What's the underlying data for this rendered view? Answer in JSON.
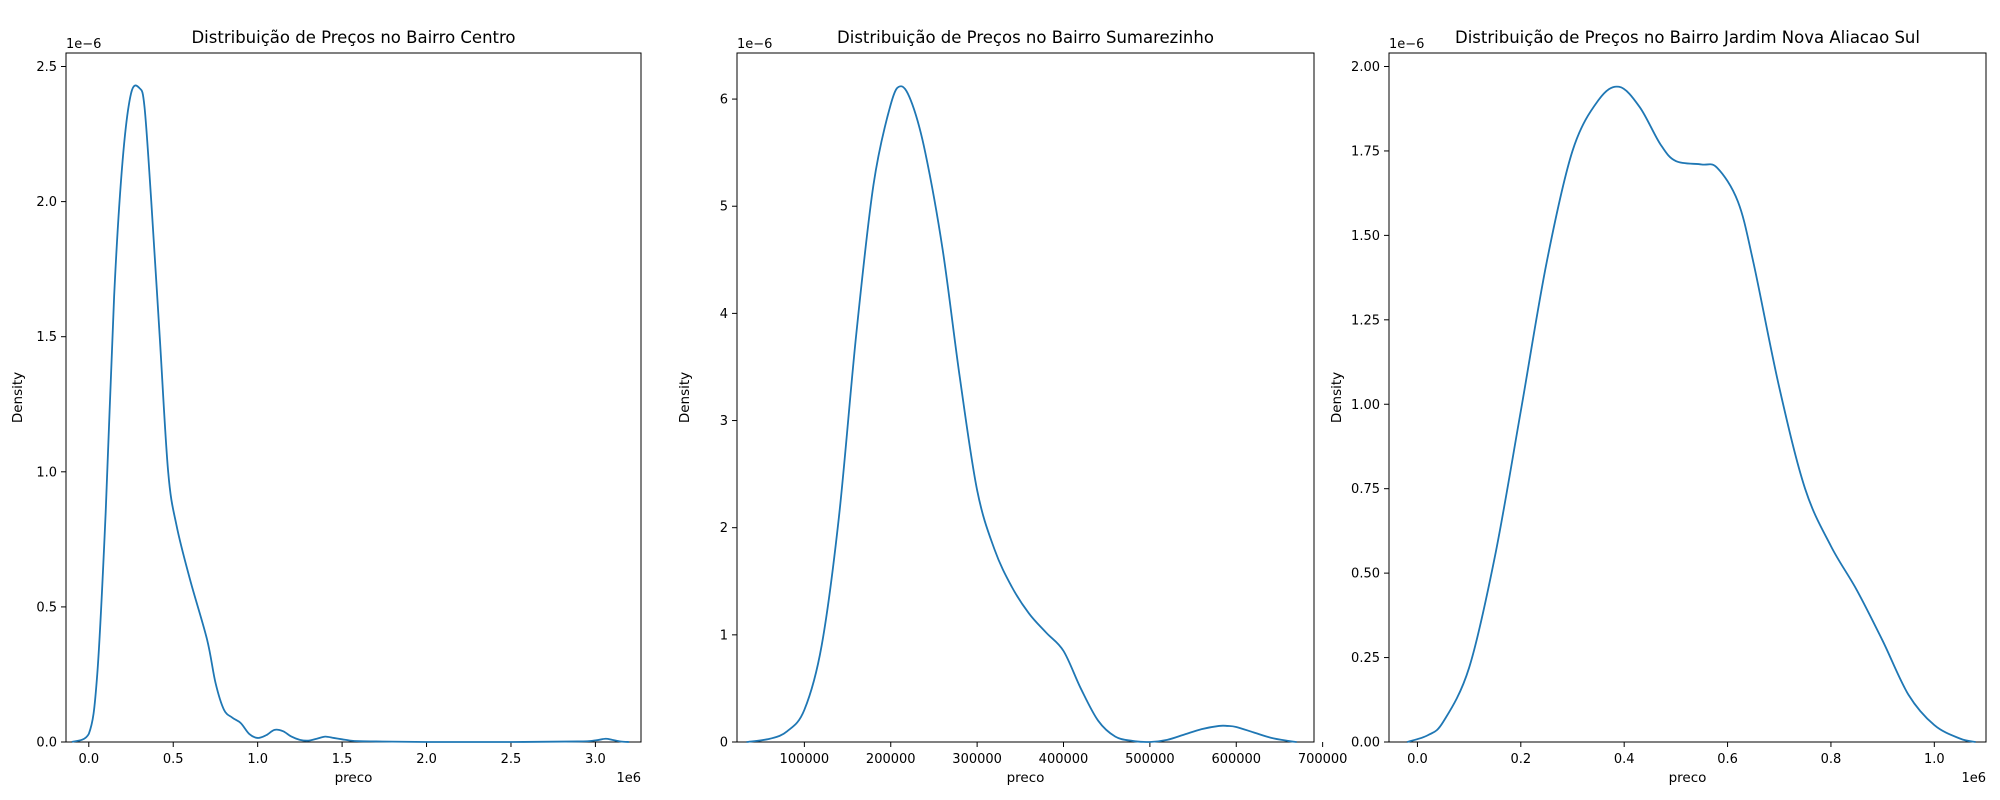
{
  "figure": {
    "background": "#ffffff",
    "line_color": "#1f77b4"
  },
  "chart_data": [
    {
      "type": "line",
      "title": "Distribuição de Preços no Bairro Centro",
      "xlabel": "preco",
      "ylabel": "Density",
      "x_offset_label": "1e6",
      "y_offset_label": "1e−6",
      "xlim": [
        -0.135,
        3.27
      ],
      "ylim": [
        0,
        2.55
      ],
      "xticks": [
        0.0,
        0.5,
        1.0,
        1.5,
        2.0,
        2.5,
        3.0
      ],
      "xtick_labels": [
        "0.0",
        "0.5",
        "1.0",
        "1.5",
        "2.0",
        "2.5",
        "3.0"
      ],
      "yticks": [
        0.0,
        0.5,
        1.0,
        1.5,
        2.0,
        2.5
      ],
      "ytick_labels": [
        "0.0",
        "0.5",
        "1.0",
        "1.5",
        "2.0",
        "2.5"
      ],
      "grid": false,
      "series": [
        {
          "x": [
            -0.1,
            0.0,
            0.05,
            0.1,
            0.15,
            0.2,
            0.25,
            0.3,
            0.33,
            0.37,
            0.42,
            0.47,
            0.52,
            0.6,
            0.7,
            0.75,
            0.8,
            0.85,
            0.9,
            0.95,
            1.0,
            1.05,
            1.1,
            1.15,
            1.2,
            1.25,
            1.3,
            1.35,
            1.4,
            1.45,
            1.5,
            1.55,
            1.6,
            1.7,
            2.0,
            2.5,
            2.9,
            3.0,
            3.06,
            3.1,
            3.15,
            3.2
          ],
          "y": [
            0.0,
            0.03,
            0.25,
            0.85,
            1.65,
            2.15,
            2.4,
            2.42,
            2.35,
            2.0,
            1.5,
            1.0,
            0.8,
            0.6,
            0.38,
            0.22,
            0.12,
            0.09,
            0.07,
            0.03,
            0.015,
            0.025,
            0.045,
            0.04,
            0.02,
            0.008,
            0.005,
            0.012,
            0.02,
            0.015,
            0.01,
            0.005,
            0.003,
            0.002,
            0.0,
            0.0,
            0.002,
            0.006,
            0.012,
            0.008,
            0.002,
            0.0
          ]
        }
      ]
    },
    {
      "type": "line",
      "title": "Distribuição de Preços no Bairro Sumarezinho",
      "xlabel": "preco",
      "ylabel": "Density",
      "x_offset_label": "",
      "y_offset_label": "1e−6",
      "xlim": [
        22000,
        690000
      ],
      "ylim": [
        0,
        6.43
      ],
      "xticks": [
        100000,
        200000,
        300000,
        400000,
        500000,
        600000,
        700000
      ],
      "xtick_labels": [
        "100000",
        "200000",
        "300000",
        "400000",
        "500000",
        "600000",
        "700000"
      ],
      "yticks": [
        0,
        1,
        2,
        3,
        4,
        5,
        6
      ],
      "ytick_labels": [
        "0",
        "1",
        "2",
        "3",
        "4",
        "5",
        "6"
      ],
      "grid": false,
      "series": [
        {
          "x": [
            33000,
            60000,
            80000,
            100000,
            120000,
            140000,
            160000,
            180000,
            200000,
            212000,
            225000,
            240000,
            260000,
            280000,
            300000,
            320000,
            340000,
            360000,
            380000,
            400000,
            420000,
            440000,
            460000,
            480000,
            500000,
            520000,
            540000,
            560000,
            580000,
            590000,
            600000,
            620000,
            640000,
            660000,
            670000
          ],
          "y": [
            0.0,
            0.03,
            0.1,
            0.3,
            0.9,
            2.1,
            3.8,
            5.2,
            5.95,
            6.12,
            5.95,
            5.5,
            4.6,
            3.4,
            2.35,
            1.8,
            1.45,
            1.2,
            1.02,
            0.85,
            0.5,
            0.2,
            0.05,
            0.01,
            0.0,
            0.02,
            0.07,
            0.12,
            0.15,
            0.15,
            0.14,
            0.09,
            0.04,
            0.01,
            0.0
          ]
        }
      ]
    },
    {
      "type": "line",
      "title": "Distribuição de Preços no Bairro Jardim Nova Aliacao Sul",
      "xlabel": "preco",
      "ylabel": "Density",
      "x_offset_label": "1e6",
      "y_offset_label": "1e−6",
      "xlim": [
        -0.055,
        1.1
      ],
      "ylim": [
        0,
        2.04
      ],
      "xticks": [
        0.0,
        0.2,
        0.4,
        0.6,
        0.8,
        1.0
      ],
      "xtick_labels": [
        "0.0",
        "0.2",
        "0.4",
        "0.6",
        "0.8",
        "1.0"
      ],
      "yticks": [
        0.0,
        0.25,
        0.5,
        0.75,
        1.0,
        1.25,
        1.5,
        1.75,
        2.0
      ],
      "ytick_labels": [
        "0.00",
        "0.25",
        "0.50",
        "0.75",
        "1.00",
        "1.25",
        "1.50",
        "1.75",
        "2.00"
      ],
      "grid": false,
      "series": [
        {
          "x": [
            -0.02,
            0.02,
            0.05,
            0.1,
            0.15,
            0.2,
            0.25,
            0.3,
            0.35,
            0.39,
            0.43,
            0.47,
            0.5,
            0.55,
            0.58,
            0.62,
            0.65,
            0.7,
            0.75,
            0.8,
            0.85,
            0.9,
            0.95,
            1.0,
            1.05,
            1.08
          ],
          "y": [
            0.0,
            0.02,
            0.06,
            0.22,
            0.55,
            0.98,
            1.42,
            1.75,
            1.9,
            1.94,
            1.88,
            1.77,
            1.72,
            1.71,
            1.7,
            1.6,
            1.42,
            1.05,
            0.75,
            0.58,
            0.45,
            0.3,
            0.14,
            0.05,
            0.01,
            0.0
          ]
        }
      ]
    }
  ]
}
